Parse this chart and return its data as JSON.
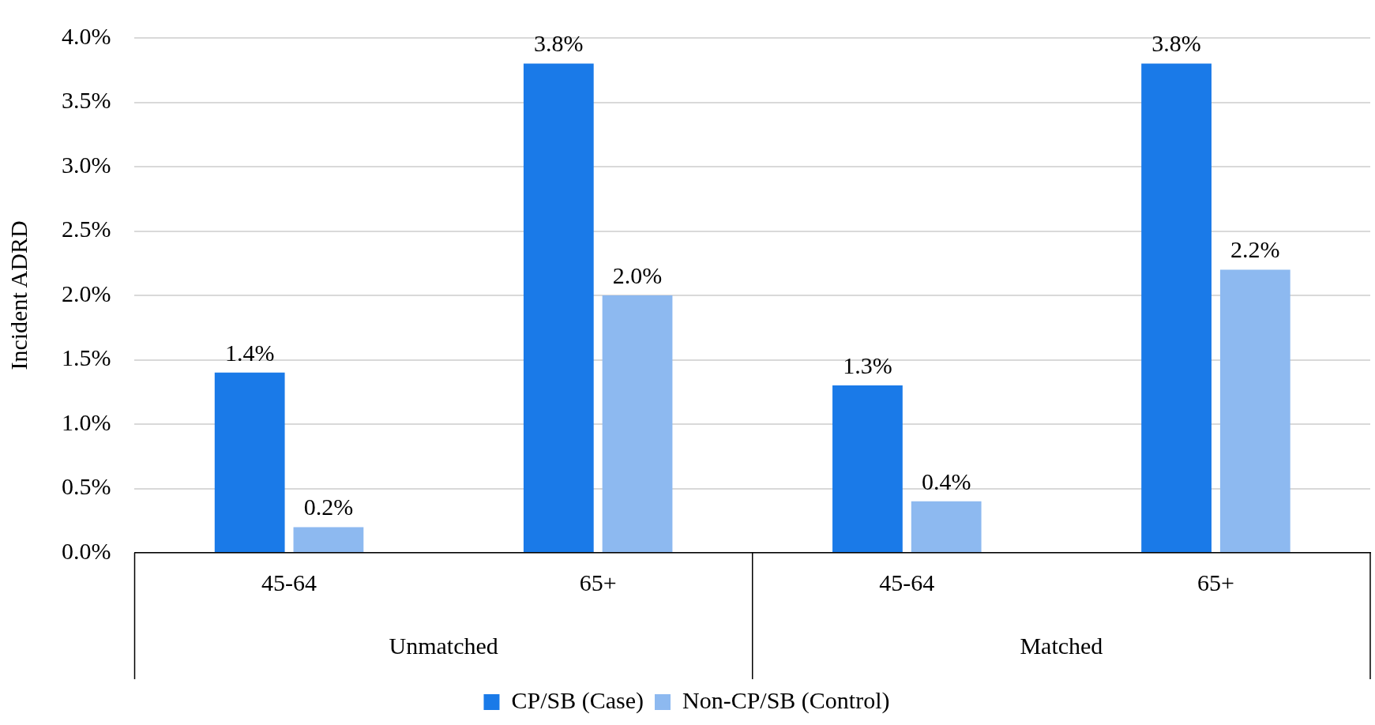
{
  "chart_data": {
    "type": "bar",
    "ylabel": "Incident ADRD",
    "categories": [
      "45-64",
      "65+",
      "45-64",
      "65+"
    ],
    "annotations": [
      "Unmatched",
      "Matched"
    ],
    "series": [
      {
        "name": "CP/SB (Case)",
        "color": "#1a7ae8",
        "values": [
          1.4,
          3.8,
          1.3,
          3.8
        ],
        "value_labels": [
          "1.4%",
          "3.8%",
          "1.3%",
          "3.8%"
        ]
      },
      {
        "name": "Non-CP/SB (Control)",
        "color": "#8db9f0",
        "values": [
          0.2,
          2.0,
          0.4,
          2.2
        ],
        "value_labels": [
          "0.2%",
          "2.0%",
          "0.4%",
          "2.2%"
        ]
      }
    ],
    "ylim": [
      0,
      4
    ],
    "yticks": [
      {
        "value": 0,
        "label": "0.0%"
      },
      {
        "value": 0.5,
        "label": "0.5%"
      },
      {
        "value": 1,
        "label": "1.0%"
      },
      {
        "value": 1.5,
        "label": "1.5%"
      },
      {
        "value": 2,
        "label": "2.0%"
      },
      {
        "value": 2.5,
        "label": "2.5%"
      },
      {
        "value": 3,
        "label": "3.0%"
      },
      {
        "value": 3.5,
        "label": "3.5%"
      },
      {
        "value": 4,
        "label": "4.0%"
      }
    ],
    "grid": "y",
    "legend": "bottom"
  }
}
